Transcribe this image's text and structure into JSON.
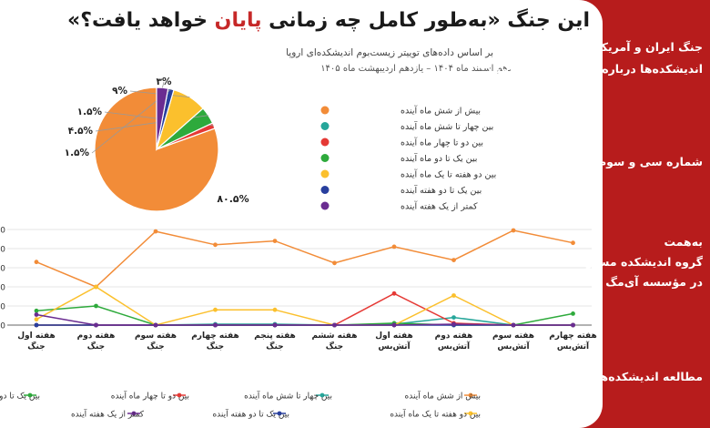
{
  "header": {
    "title_part1": "این جنگ «به‌طور کامل چه زمانی ",
    "title_highlight": "پایان",
    "title_part2": " خواهد یافت؟»",
    "subtitle": "بر اساس داده‌های توییتر زیست‌بوم اندیشکده‌ای اروپا",
    "dates": "دهم اسفند ماه ۱۴۰۴ – یازدهم اردیبهشت ماه ۱۴۰۵"
  },
  "sidebar": {
    "block1_line1": "جنگ ایران و آمریکا؛",
    "block1_line2": "اندیشکده‌ها درباره روز بعد چه می‌گویند؟",
    "block2": "شماره سی و سوم",
    "block3_line1": "به‌همت",
    "block3_line2": "گروه اندیشکده مسیر",
    "block3_line3": "در مؤسسه آی‌مگ",
    "block4": "مطالعه اندیشکده‌ها"
  },
  "colors": {
    "background_accent": "#b71c1c",
    "title_highlight": "#c62828"
  },
  "chart_data": [
    {
      "type": "pie",
      "labels": [
        "بیش از شش ماه آینده",
        "بین چهار تا شش ماه آینده",
        "بین دو تا چهار ماه آینده",
        "بین یک تا دو ماه آینده",
        "بین دو هفته تا یک ماه آینده",
        "بین یک تا دو هفته آینده",
        "کمتر از یک هفته آینده"
      ],
      "values": [
        80.5,
        0,
        1.5,
        4.5,
        9,
        1.5,
        3
      ],
      "value_labels": [
        "۸۰.۵%",
        "",
        "۱.۵%",
        "۴.۵%",
        "۹%",
        "۱.۵%",
        "۳%"
      ],
      "colors": [
        "#f28c38",
        "#26a69a",
        "#e53935",
        "#2eaa3c",
        "#fbc02d",
        "#283f9e",
        "#6a2c91"
      ],
      "legend_position": "right"
    },
    {
      "type": "line",
      "categories": [
        "هفته اول جنگ",
        "هفته دوم جنگ",
        "هفته سوم جنگ",
        "هفته چهارم جنگ",
        "هفته پنجم جنگ",
        "هفته ششم جنگ",
        "هفته اول آتش‌بس",
        "هفته دوم آتش‌بس",
        "هفته سوم آتش‌بس",
        "هفته چهارم آتش‌بس"
      ],
      "category_lines": [
        [
          "هفته اول",
          "جنگ"
        ],
        [
          "هفته دوم",
          "جنگ"
        ],
        [
          "هفته سوم",
          "جنگ"
        ],
        [
          "هفته چهارم",
          "جنگ"
        ],
        [
          "هفته پنجم",
          "جنگ"
        ],
        [
          "هفته ششم",
          "جنگ"
        ],
        [
          "هفته اول",
          "آتش‌بس"
        ],
        [
          "هفته دوم",
          "آتش‌بس"
        ],
        [
          "هفته سوم",
          "آتش‌بس"
        ],
        [
          "هفته چهارم",
          "آتش‌بس"
        ]
      ],
      "series": [
        {
          "name": "بیش از شش ماه آینده",
          "color": "#f28c38",
          "values": [
            66,
            40,
            98,
            84,
            88,
            65,
            82,
            68,
            99,
            86
          ]
        },
        {
          "name": "بین چهار تا شش ماه آینده",
          "color": "#26a69a",
          "values": [
            0,
            0,
            0,
            1,
            1,
            0,
            1,
            8,
            0,
            0
          ]
        },
        {
          "name": "بین دو تا چهار ماه آینده",
          "color": "#e53935",
          "values": [
            0,
            0,
            0,
            0,
            0,
            0,
            33,
            2,
            0,
            0
          ]
        },
        {
          "name": "بین یک تا دو ماه آینده",
          "color": "#2eaa3c",
          "values": [
            15,
            20,
            0,
            0,
            0,
            0,
            2,
            0,
            0,
            12
          ]
        },
        {
          "name": "بین دو هفته تا یک ماه آینده",
          "color": "#fbc02d",
          "values": [
            6,
            40,
            0,
            16,
            16,
            0,
            0,
            31,
            0,
            0
          ]
        },
        {
          "name": "بین یک تا دو هفته آینده",
          "color": "#283f9e",
          "values": [
            0,
            0,
            0,
            0,
            0,
            0,
            0,
            0,
            0,
            0
          ]
        },
        {
          "name": "کمتر از یک هفته آینده",
          "color": "#6a2c91",
          "values": [
            11,
            0,
            0,
            0,
            0,
            0,
            0,
            1,
            0,
            0
          ]
        }
      ],
      "ylim": [
        0,
        100
      ],
      "yticks": [
        0,
        20,
        40,
        60,
        80,
        100
      ],
      "grid": true,
      "legend_position": "bottom"
    }
  ]
}
